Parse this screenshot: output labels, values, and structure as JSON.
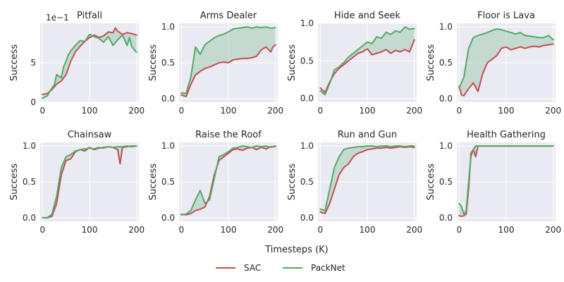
{
  "figure": {
    "xlabel": "Timesteps (K)",
    "legend": [
      {
        "name": "SAC",
        "color": "#c44e52"
      },
      {
        "name": "PackNet",
        "color": "#55a868"
      }
    ],
    "band_color": "#55a868"
  },
  "chart_data": [
    {
      "type": "line",
      "title": "Pitfall",
      "ylabel": "Success",
      "scale_note": "1e−1",
      "xlim": [
        -5,
        205
      ],
      "ylim": [
        0,
        10
      ],
      "xticks": [
        0,
        100,
        200
      ],
      "yticks": [
        0,
        5
      ],
      "grid": true,
      "series": [
        {
          "name": "SAC",
          "color": "#c44e52",
          "x": [
            0,
            10,
            20,
            30,
            40,
            50,
            60,
            70,
            80,
            90,
            100,
            110,
            120,
            130,
            140,
            150,
            155,
            160,
            170,
            180,
            190,
            200
          ],
          "y": [
            1.0,
            1.1,
            1.6,
            2.3,
            2.7,
            3.5,
            5.2,
            6.4,
            7.1,
            7.7,
            8.2,
            8.5,
            8.2,
            8.4,
            8.9,
            8.8,
            9.4,
            9.0,
            8.6,
            8.8,
            8.7,
            8.5
          ]
        },
        {
          "name": "PackNet",
          "color": "#55a868",
          "x": [
            0,
            10,
            20,
            25,
            30,
            40,
            45,
            50,
            55,
            60,
            70,
            80,
            90,
            100,
            110,
            120,
            130,
            140,
            150,
            160,
            170,
            180,
            185,
            190,
            200
          ],
          "y": [
            0.5,
            0.8,
            1.8,
            2.2,
            3.5,
            3.1,
            4.5,
            5.2,
            6.0,
            6.5,
            7.2,
            7.8,
            7.7,
            8.6,
            8.3,
            8.1,
            7.6,
            8.3,
            7.2,
            7.9,
            8.5,
            7.2,
            8.2,
            7.0,
            6.3
          ]
        }
      ]
    },
    {
      "type": "line",
      "title": "Arms Dealer",
      "ylabel": "Success",
      "xlim": [
        -5,
        205
      ],
      "ylim": [
        -0.05,
        1.05
      ],
      "xticks": [
        0,
        100,
        200
      ],
      "yticks": [
        0.0,
        0.5,
        1.0
      ],
      "yticklabels": [
        "0.0",
        "0.5",
        "1.0"
      ],
      "grid": true,
      "series": [
        {
          "name": "SAC",
          "color": "#c44e52",
          "x": [
            0,
            10,
            20,
            30,
            40,
            50,
            60,
            70,
            80,
            90,
            100,
            110,
            120,
            130,
            140,
            150,
            160,
            170,
            180,
            190,
            195,
            200
          ],
          "y": [
            0.05,
            0.03,
            0.2,
            0.33,
            0.38,
            0.42,
            0.44,
            0.47,
            0.5,
            0.51,
            0.5,
            0.54,
            0.55,
            0.56,
            0.56,
            0.57,
            0.59,
            0.68,
            0.72,
            0.65,
            0.72,
            0.75
          ]
        },
        {
          "name": "PackNet",
          "color": "#55a868",
          "x": [
            0,
            10,
            20,
            30,
            40,
            50,
            60,
            70,
            80,
            90,
            100,
            110,
            120,
            130,
            140,
            150,
            160,
            170,
            180,
            190,
            200
          ],
          "y": [
            0.08,
            0.07,
            0.3,
            0.72,
            0.62,
            0.75,
            0.8,
            0.85,
            0.88,
            0.9,
            0.93,
            0.97,
            0.98,
            0.99,
            1.0,
            0.98,
            1.0,
            0.99,
            1.0,
            0.98,
            0.99
          ]
        }
      ]
    },
    {
      "type": "line",
      "title": "Hide and Seek",
      "ylabel": "Success",
      "xlim": [
        -5,
        205
      ],
      "ylim": [
        -0.05,
        1.0
      ],
      "xticks": [
        0,
        100,
        200
      ],
      "yticks": [
        0.0,
        0.5,
        1.0
      ],
      "yticklabels": [
        "0.0",
        "0.5",
        "1.0"
      ],
      "grid": true,
      "series": [
        {
          "name": "SAC",
          "color": "#c44e52",
          "x": [
            0,
            10,
            20,
            30,
            40,
            50,
            60,
            70,
            80,
            90,
            100,
            110,
            120,
            130,
            140,
            150,
            160,
            170,
            180,
            190,
            200
          ],
          "y": [
            0.14,
            0.08,
            0.22,
            0.33,
            0.4,
            0.45,
            0.5,
            0.55,
            0.6,
            0.62,
            0.66,
            0.58,
            0.6,
            0.62,
            0.65,
            0.6,
            0.64,
            0.62,
            0.65,
            0.62,
            0.78
          ]
        },
        {
          "name": "PackNet",
          "color": "#55a868",
          "x": [
            0,
            10,
            20,
            30,
            40,
            50,
            60,
            70,
            80,
            90,
            100,
            110,
            120,
            130,
            140,
            150,
            160,
            170,
            180,
            190,
            200
          ],
          "y": [
            0.1,
            0.05,
            0.2,
            0.38,
            0.42,
            0.48,
            0.55,
            0.6,
            0.65,
            0.7,
            0.75,
            0.73,
            0.82,
            0.8,
            0.88,
            0.85,
            0.9,
            0.88,
            0.95,
            0.92,
            0.93
          ]
        }
      ]
    },
    {
      "type": "line",
      "title": "Floor is Lava",
      "ylabel": "Success",
      "xlim": [
        -5,
        205
      ],
      "ylim": [
        -0.05,
        1.05
      ],
      "xticks": [
        0,
        100,
        200
      ],
      "yticks": [
        0.0,
        0.5,
        1.0
      ],
      "yticklabels": [
        "0.0",
        "0.5",
        "1.0"
      ],
      "grid": true,
      "series": [
        {
          "name": "SAC",
          "color": "#c44e52",
          "x": [
            0,
            5,
            10,
            20,
            30,
            40,
            50,
            60,
            70,
            80,
            90,
            100,
            110,
            120,
            130,
            140,
            150,
            160,
            170,
            180,
            190,
            200
          ],
          "y": [
            0.17,
            0.05,
            0.04,
            0.14,
            0.22,
            0.1,
            0.35,
            0.5,
            0.55,
            0.6,
            0.7,
            0.72,
            0.68,
            0.7,
            0.72,
            0.7,
            0.72,
            0.73,
            0.72,
            0.74,
            0.75,
            0.76
          ]
        },
        {
          "name": "PackNet",
          "color": "#55a868",
          "x": [
            0,
            10,
            20,
            30,
            40,
            50,
            60,
            70,
            80,
            90,
            100,
            110,
            120,
            130,
            140,
            150,
            160,
            170,
            180,
            190,
            200
          ],
          "y": [
            0.15,
            0.3,
            0.7,
            0.85,
            0.88,
            0.9,
            0.92,
            0.95,
            0.97,
            0.96,
            0.94,
            0.92,
            0.9,
            0.92,
            0.88,
            0.87,
            0.86,
            0.85,
            0.85,
            0.88,
            0.82
          ]
        }
      ]
    },
    {
      "type": "line",
      "title": "Chainsaw",
      "ylabel": "Success",
      "xlim": [
        -5,
        205
      ],
      "ylim": [
        -0.05,
        1.05
      ],
      "xticks": [
        0,
        100,
        200
      ],
      "yticks": [
        0.0,
        0.5,
        1.0
      ],
      "yticklabels": [
        "0.0",
        "0.5",
        "1.0"
      ],
      "grid": true,
      "series": [
        {
          "name": "SAC",
          "color": "#c44e52",
          "x": [
            0,
            10,
            20,
            30,
            40,
            50,
            60,
            70,
            80,
            90,
            100,
            110,
            120,
            130,
            140,
            150,
            160,
            165,
            170,
            180,
            190,
            200
          ],
          "y": [
            0.0,
            0.0,
            0.02,
            0.2,
            0.6,
            0.8,
            0.82,
            0.92,
            0.95,
            0.93,
            0.98,
            0.95,
            0.97,
            0.98,
            0.99,
            0.98,
            0.95,
            0.75,
            0.98,
            0.99,
            1.0,
            1.0
          ]
        },
        {
          "name": "PackNet",
          "color": "#55a868",
          "x": [
            0,
            10,
            20,
            30,
            40,
            50,
            60,
            70,
            80,
            90,
            100,
            110,
            120,
            130,
            140,
            150,
            160,
            170,
            180,
            190,
            200
          ],
          "y": [
            0.0,
            0.0,
            0.05,
            0.3,
            0.7,
            0.85,
            0.88,
            0.93,
            0.95,
            0.96,
            0.97,
            0.96,
            0.98,
            0.97,
            0.99,
            0.98,
            0.99,
            0.99,
            1.0,
            0.99,
            1.0
          ]
        }
      ]
    },
    {
      "type": "line",
      "title": "Raise the Roof",
      "ylabel": "Success",
      "xlim": [
        -5,
        205
      ],
      "ylim": [
        -0.05,
        1.05
      ],
      "xticks": [
        0,
        100,
        200
      ],
      "yticks": [
        0.0,
        0.5,
        1.0
      ],
      "yticklabels": [
        "0.0",
        "0.5",
        "1.0"
      ],
      "grid": true,
      "series": [
        {
          "name": "SAC",
          "color": "#c44e52",
          "x": [
            0,
            10,
            20,
            30,
            40,
            50,
            60,
            70,
            80,
            90,
            100,
            110,
            120,
            130,
            140,
            150,
            160,
            170,
            180,
            190,
            200
          ],
          "y": [
            0.05,
            0.04,
            0.06,
            0.1,
            0.12,
            0.15,
            0.3,
            0.6,
            0.8,
            0.85,
            0.9,
            0.95,
            0.96,
            0.94,
            0.97,
            0.98,
            0.95,
            0.98,
            0.96,
            0.99,
            0.99
          ]
        },
        {
          "name": "PackNet",
          "color": "#55a868",
          "x": [
            0,
            10,
            20,
            30,
            40,
            50,
            60,
            70,
            80,
            90,
            100,
            110,
            120,
            130,
            140,
            150,
            160,
            170,
            180,
            190,
            200
          ],
          "y": [
            0.04,
            0.05,
            0.1,
            0.25,
            0.38,
            0.2,
            0.25,
            0.55,
            0.85,
            0.88,
            0.92,
            0.97,
            0.98,
            1.0,
            0.99,
            0.98,
            1.0,
            0.99,
            1.0,
            0.98,
            1.0
          ]
        }
      ]
    },
    {
      "type": "line",
      "title": "Run and Gun",
      "ylabel": "Success",
      "xlim": [
        -5,
        205
      ],
      "ylim": [
        -0.05,
        1.05
      ],
      "xticks": [
        0,
        100,
        200
      ],
      "yticks": [
        0.0,
        0.5,
        1.0
      ],
      "yticklabels": [
        "0.0",
        "0.5",
        "1.0"
      ],
      "grid": true,
      "series": [
        {
          "name": "SAC",
          "color": "#c44e52",
          "x": [
            0,
            10,
            20,
            30,
            40,
            50,
            60,
            70,
            80,
            90,
            100,
            110,
            120,
            130,
            140,
            150,
            160,
            170,
            180,
            190,
            200
          ],
          "y": [
            0.08,
            0.06,
            0.2,
            0.4,
            0.6,
            0.7,
            0.75,
            0.85,
            0.9,
            0.92,
            0.95,
            0.96,
            0.97,
            0.97,
            0.98,
            0.97,
            0.98,
            0.99,
            0.98,
            0.99,
            0.98
          ]
        },
        {
          "name": "PackNet",
          "color": "#55a868",
          "x": [
            0,
            10,
            20,
            30,
            40,
            50,
            60,
            70,
            80,
            90,
            100,
            110,
            120,
            130,
            140,
            150,
            160,
            170,
            180,
            190,
            200
          ],
          "y": [
            0.12,
            0.1,
            0.4,
            0.7,
            0.85,
            0.95,
            0.97,
            0.98,
            0.99,
            0.99,
            1.0,
            1.0,
            0.99,
            1.0,
            1.0,
            0.99,
            1.0,
            1.0,
            0.99,
            1.0,
            1.0
          ]
        }
      ]
    },
    {
      "type": "line",
      "title": "Health Gathering",
      "ylabel": "Success",
      "xlim": [
        -5,
        205
      ],
      "ylim": [
        -0.05,
        1.05
      ],
      "xticks": [
        0,
        100,
        200
      ],
      "yticks": [
        0.0,
        0.5,
        1.0
      ],
      "yticklabels": [
        "0.0",
        "0.5",
        "1.0"
      ],
      "grid": true,
      "series": [
        {
          "name": "SAC",
          "color": "#c44e52",
          "x": [
            0,
            5,
            10,
            15,
            20,
            25,
            30,
            35,
            40,
            50,
            60,
            70,
            80,
            90,
            100,
            120,
            140,
            160,
            180,
            200
          ],
          "y": [
            0.03,
            0.02,
            0.03,
            0.05,
            0.4,
            0.9,
            0.95,
            0.85,
            1.0,
            1.0,
            1.0,
            1.0,
            1.0,
            1.0,
            1.0,
            1.0,
            1.0,
            1.0,
            1.0,
            1.0
          ]
        },
        {
          "name": "PackNet",
          "color": "#55a868",
          "x": [
            0,
            5,
            10,
            15,
            20,
            25,
            30,
            35,
            40,
            50,
            60,
            70,
            80,
            90,
            100,
            120,
            140,
            160,
            180,
            200
          ],
          "y": [
            0.2,
            0.15,
            0.05,
            0.1,
            0.5,
            0.85,
            0.95,
            1.0,
            1.0,
            1.0,
            1.0,
            1.0,
            1.0,
            1.0,
            1.0,
            1.0,
            1.0,
            1.0,
            1.0,
            1.0
          ]
        }
      ]
    }
  ]
}
